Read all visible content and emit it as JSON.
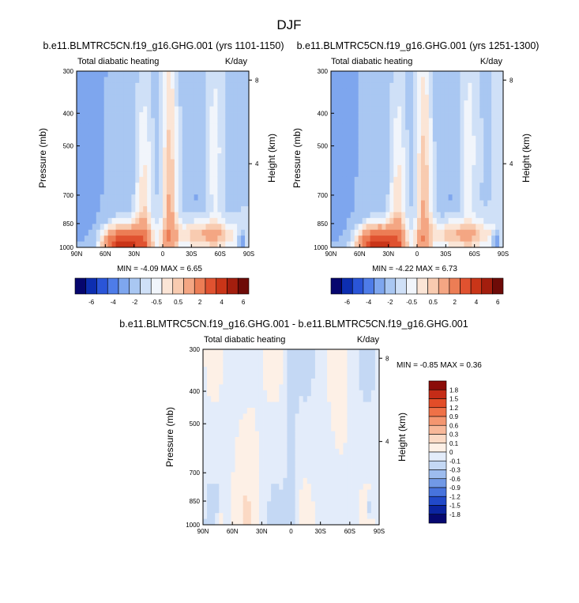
{
  "figure": {
    "title": "DJF",
    "plot_left": {
      "subtitle": "b.e11.BLMTRC5CN.f19_g16.GHG.001 (yrs 1101-1150)",
      "left_label": "Total diabatic heating",
      "right_label": "K/day",
      "stats": "MIN = -4.09  MAX =  6.65"
    },
    "plot_right": {
      "subtitle": "b.e11.BLMTRC5CN.f19_g16.GHG.001 (yrs 1251-1300)",
      "left_label": "Total diabatic heating",
      "right_label": "K/day",
      "stats": "MIN = -4.22  MAX =  6.73"
    },
    "plot_diff": {
      "subtitle": "b.e11.BLMTRC5CN.f19_g16.GHG.001 - b.e11.BLMTRC5CN.f19_g16.GHG.001",
      "left_label": "Total diabatic heating",
      "right_label": "K/day",
      "stats": "MIN = -0.85  MAX =  0.36"
    },
    "ylabel": "Pressure (mb)",
    "y2label": "Height (km)"
  },
  "chart_data": [
    {
      "type": "heatmap",
      "title": "b.e11.BLMTRC5CN.f19_g16.GHG.001 (yrs 1101-1150)",
      "ylabel": "Pressure (mb)",
      "y2label": "Height (km)",
      "x_ticks": [
        "90N",
        "60N",
        "30N",
        "0",
        "30S",
        "60S",
        "90S"
      ],
      "y_ticks": [
        300,
        400,
        500,
        700,
        850,
        1000
      ],
      "y2_ticks": [
        4,
        8
      ],
      "ylim": [
        1000,
        300
      ],
      "y_scale": "log",
      "units": "K/day",
      "min": -4.09,
      "max": 6.65,
      "colorbar_levels": [
        "-6",
        "-4",
        "-2",
        "-0.5",
        "0.5",
        "2",
        "4",
        "6"
      ],
      "colors": [
        "#06066e",
        "#0d2eb0",
        "#2a55d8",
        "#4e7ce8",
        "#7ea6ee",
        "#a9c7f2",
        "#cfe0f7",
        "#f1f5fb",
        "#fbe5d6",
        "#f8cbb0",
        "#f4a683",
        "#ec7d55",
        "#e05230",
        "#c93518",
        "#a31e0e",
        "#6e0b08"
      ]
    },
    {
      "type": "heatmap",
      "title": "b.e11.BLMTRC5CN.f19_g16.GHG.001 (yrs 1251-1300)",
      "ylabel": "Pressure (mb)",
      "y2label": "Height (km)",
      "x_ticks": [
        "90N",
        "60N",
        "30N",
        "0",
        "30S",
        "60S",
        "90S"
      ],
      "y_ticks": [
        300,
        400,
        500,
        700,
        850,
        1000
      ],
      "y2_ticks": [
        4,
        8
      ],
      "ylim": [
        1000,
        300
      ],
      "y_scale": "log",
      "units": "K/day",
      "min": -4.22,
      "max": 6.73,
      "colorbar_levels": [
        "-6",
        "-4",
        "-2",
        "-0.5",
        "0.5",
        "2",
        "4",
        "6"
      ]
    },
    {
      "type": "heatmap",
      "title": "b.e11.BLMTRC5CN.f19_g16.GHG.001 - b.e11.BLMTRC5CN.f19_g16.GHG.001",
      "ylabel": "Pressure (mb)",
      "y2label": "Height (km)",
      "x_ticks": [
        "90N",
        "60N",
        "30N",
        "0",
        "30S",
        "60S",
        "90S"
      ],
      "y_ticks": [
        300,
        400,
        500,
        700,
        850,
        1000
      ],
      "y2_ticks": [
        4,
        8
      ],
      "ylim": [
        1000,
        300
      ],
      "y_scale": "log",
      "units": "K/day",
      "min": -0.85,
      "max": 0.36,
      "colorbar_levels": [
        "1.8",
        "1.5",
        "1.2",
        "0.9",
        "0.6",
        "0.3",
        "0.1",
        "0",
        "-0.1",
        "-0.3",
        "-0.6",
        "-0.9",
        "-1.2",
        "-1.5",
        "-1.8"
      ],
      "colors": [
        "#8b0c08",
        "#c52c17",
        "#e24d28",
        "#ef7147",
        "#f49670",
        "#f8b899",
        "#fbd9c4",
        "#fdf0e6",
        "#e3ecfa",
        "#c4d8f4",
        "#9dbcee",
        "#7199e6",
        "#4773dd",
        "#2149c9",
        "#0b24a0",
        "#060870"
      ]
    }
  ]
}
